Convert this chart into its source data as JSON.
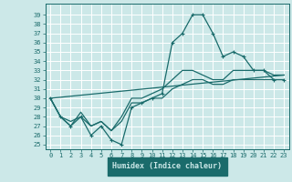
{
  "xlabel": "Humidex (Indice chaleur)",
  "background_color": "#cce8e8",
  "grid_color": "#ffffff",
  "line_color": "#1a6b6b",
  "xlabel_bg": "#1a6b6b",
  "xlabel_fg": "#cce8e8",
  "xlim": [
    -0.5,
    23.5
  ],
  "ylim": [
    24.5,
    40.2
  ],
  "xticks": [
    0,
    1,
    2,
    3,
    4,
    5,
    6,
    7,
    8,
    9,
    10,
    11,
    12,
    13,
    14,
    15,
    16,
    17,
    18,
    19,
    20,
    21,
    22,
    23
  ],
  "yticks": [
    25,
    26,
    27,
    28,
    29,
    30,
    31,
    32,
    33,
    34,
    35,
    36,
    37,
    38,
    39
  ],
  "line1_x": [
    0,
    1,
    2,
    3,
    4,
    5,
    6,
    7,
    8,
    9,
    10,
    11,
    12,
    13,
    14,
    15,
    16,
    17,
    18,
    19,
    20,
    21,
    22,
    23
  ],
  "line1_y": [
    30,
    28,
    27,
    28,
    26,
    27,
    25.5,
    25,
    29,
    29.5,
    30,
    30.5,
    36,
    37,
    39,
    39,
    37,
    34.5,
    35,
    34.5,
    33,
    33,
    32,
    32
  ],
  "line2_x": [
    0,
    1,
    2,
    3,
    4,
    5,
    6,
    7,
    8,
    9,
    10,
    11,
    12,
    13,
    14,
    15,
    16,
    17,
    18,
    19,
    20,
    21,
    22,
    23
  ],
  "line2_y": [
    30,
    28,
    27,
    28.5,
    27,
    27.5,
    26.5,
    28,
    30,
    30,
    30.5,
    31,
    32,
    33,
    33,
    32.5,
    32,
    32,
    33,
    33,
    33,
    33,
    32.5,
    32.5
  ],
  "line3_x": [
    0,
    1,
    2,
    3,
    4,
    5,
    6,
    7,
    8,
    9,
    10,
    11,
    12,
    13,
    14,
    15,
    16,
    17,
    18,
    19,
    20,
    21,
    22,
    23
  ],
  "line3_y": [
    30,
    28,
    27.5,
    28,
    27,
    27.5,
    26.5,
    27.5,
    29.5,
    29.5,
    30,
    30,
    31,
    31.5,
    32,
    32,
    31.5,
    31.5,
    32,
    32,
    32,
    32,
    32,
    32
  ],
  "line4_x": [
    0,
    23
  ],
  "line4_y": [
    30,
    32.5
  ]
}
